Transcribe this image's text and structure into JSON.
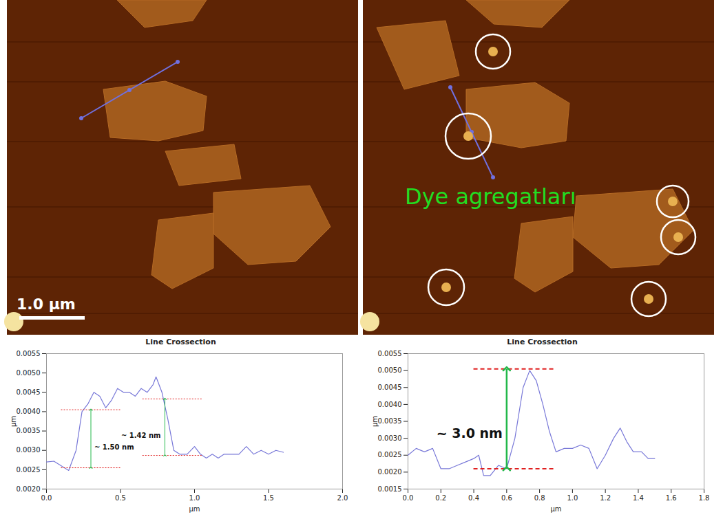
{
  "images": [
    {
      "scale_bar": "1.0 µm"
    },
    {
      "label": "Dye agregatları"
    }
  ],
  "chart_data": [
    {
      "type": "line",
      "title": "Line Crossection",
      "x_label": "µm",
      "y_label": "µm",
      "color": "#7878d8",
      "x": [
        0.0,
        0.05,
        0.1,
        0.15,
        0.2,
        0.24,
        0.28,
        0.32,
        0.36,
        0.4,
        0.44,
        0.48,
        0.52,
        0.56,
        0.6,
        0.64,
        0.68,
        0.72,
        0.74,
        0.78,
        0.82,
        0.86,
        0.9,
        0.95,
        1.0,
        1.04,
        1.08,
        1.12,
        1.16,
        1.2,
        1.25,
        1.3,
        1.35,
        1.4,
        1.45,
        1.5,
        1.55,
        1.6
      ],
      "values": [
        0.0027,
        0.00272,
        0.0026,
        0.00248,
        0.003,
        0.004,
        0.0042,
        0.0045,
        0.0044,
        0.0041,
        0.0043,
        0.0046,
        0.0045,
        0.0045,
        0.0044,
        0.0046,
        0.0045,
        0.0047,
        0.0049,
        0.0045,
        0.0038,
        0.003,
        0.0029,
        0.0029,
        0.0031,
        0.0029,
        0.0028,
        0.0029,
        0.0028,
        0.0029,
        0.0029,
        0.0029,
        0.0031,
        0.0029,
        0.003,
        0.0029,
        0.003,
        0.00295
      ],
      "xlim": [
        0.0,
        2.0
      ],
      "xticks": [
        {
          "value": 0.0,
          "label": "0.0"
        },
        0.5,
        {
          "value": 1.0,
          "label": "1.0"
        },
        1.5,
        {
          "value": 2.0,
          "label": "2.0"
        }
      ],
      "ylim": [
        0.002,
        0.0055
      ],
      "yticks": [
        {
          "value": 0.002,
          "label": "0.0020"
        },
        {
          "value": 0.0025,
          "label": "0.0025"
        },
        {
          "value": 0.003,
          "label": "0.0030"
        },
        {
          "value": 0.0035,
          "label": "0.0035"
        },
        {
          "value": 0.004,
          "label": "0.0040"
        },
        {
          "value": 0.0045,
          "label": "0.0045"
        },
        {
          "value": 0.005,
          "label": "0.0050"
        },
        {
          "value": 0.0055,
          "label": "0.0055"
        }
      ],
      "grid": false,
      "annotations": [
        {
          "text": "~ 1.50 nm",
          "x": 0.3,
          "y1": 0.00255,
          "y2": 0.00405,
          "x_from": 0.1,
          "x_to": 0.5
        },
        {
          "text": "~ 1.42 nm",
          "x": 0.8,
          "y1": 0.00287,
          "y2": 0.00433,
          "x_from": 0.65,
          "x_to": 1.05
        }
      ]
    },
    {
      "type": "line",
      "title": "Line Crossection",
      "x_label": "µm",
      "y_label": "µm",
      "color": "#7878d8",
      "x": [
        0.0,
        0.05,
        0.1,
        0.15,
        0.2,
        0.25,
        0.3,
        0.35,
        0.4,
        0.43,
        0.46,
        0.5,
        0.55,
        0.6,
        0.65,
        0.7,
        0.74,
        0.78,
        0.82,
        0.86,
        0.9,
        0.95,
        1.0,
        1.05,
        1.1,
        1.15,
        1.2,
        1.25,
        1.29,
        1.33,
        1.37,
        1.42,
        1.46,
        1.5
      ],
      "values": [
        0.0025,
        0.0027,
        0.0026,
        0.0027,
        0.0021,
        0.0021,
        0.0022,
        0.0023,
        0.0024,
        0.0025,
        0.0019,
        0.0019,
        0.0022,
        0.0021,
        0.003,
        0.0045,
        0.005,
        0.0047,
        0.004,
        0.0032,
        0.0026,
        0.0027,
        0.0027,
        0.0028,
        0.0027,
        0.0021,
        0.0025,
        0.003,
        0.0033,
        0.0029,
        0.0026,
        0.0026,
        0.0024,
        0.0024
      ],
      "xlim": [
        0.0,
        1.8
      ],
      "xticks": [
        {
          "value": 0.0,
          "label": "0.0"
        },
        0.2,
        0.4,
        0.6,
        0.8,
        {
          "value": 1.0,
          "label": "1.0"
        },
        1.2,
        1.4,
        1.6,
        1.8
      ],
      "ylim": [
        0.0015,
        0.0055
      ],
      "yticks": [
        {
          "value": 0.0015,
          "label": "0.0015"
        },
        {
          "value": 0.002,
          "label": "0.0020"
        },
        {
          "value": 0.0025,
          "label": "0.0025"
        },
        {
          "value": 0.003,
          "label": "0.0030"
        },
        {
          "value": 0.0035,
          "label": "0.0035"
        },
        {
          "value": 0.004,
          "label": "0.0040"
        },
        {
          "value": 0.0045,
          "label": "0.0045"
        },
        {
          "value": 0.005,
          "label": "0.0050"
        },
        {
          "value": 0.0055,
          "label": "0.0055"
        }
      ],
      "grid": false,
      "annotations": [
        {
          "text": "~ 3.0 nm",
          "x": 0.6,
          "y1": 0.0021,
          "y2": 0.00505,
          "x_from": 0.4,
          "x_to": 0.9
        }
      ]
    }
  ]
}
